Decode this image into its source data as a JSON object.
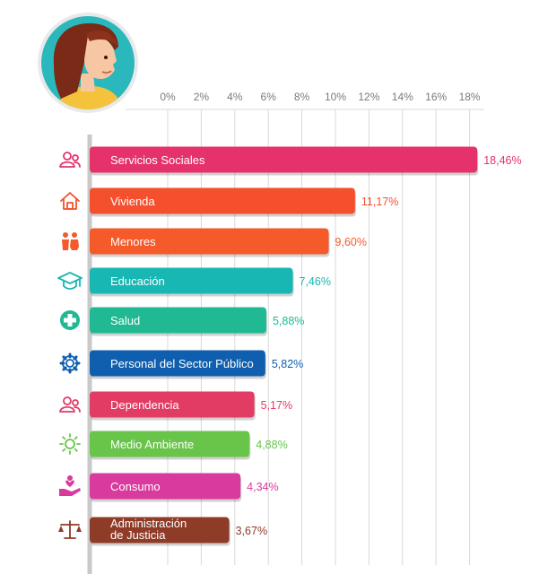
{
  "chart_data": {
    "type": "bar",
    "orientation": "horizontal",
    "x_ticks": [
      "0%",
      "2%",
      "4%",
      "6%",
      "8%",
      "10%",
      "12%",
      "14%",
      "16%",
      "18%"
    ],
    "xlim": [
      0,
      18
    ],
    "grid": true,
    "categories": [
      {
        "label": "Servicios Sociales",
        "value": 18.46,
        "value_label": "18,46%",
        "color": "#e5326b",
        "icon": "people-icon"
      },
      {
        "label": "Vivienda",
        "value": 11.17,
        "value_label": "11,17%",
        "color": "#f4502d",
        "icon": "house-icon"
      },
      {
        "label": "Menores",
        "value": 9.6,
        "value_label": "9,60%",
        "color": "#f45a2a",
        "icon": "children-icon"
      },
      {
        "label": "Educación",
        "value": 7.46,
        "value_label": "7,46%",
        "color": "#19b7b3",
        "icon": "graduation-cap-icon"
      },
      {
        "label": "Salud",
        "value": 5.88,
        "value_label": "5,88%",
        "color": "#20b993",
        "icon": "health-cross-icon"
      },
      {
        "label": "Personal del Sector Público",
        "value": 5.82,
        "value_label": "5,82%",
        "color": "#0f5fae",
        "icon": "gear-icon"
      },
      {
        "label": "Dependencia",
        "value": 5.17,
        "value_label": "5,17%",
        "color": "#e23b64",
        "icon": "people-icon"
      },
      {
        "label": "Medio Ambiente",
        "value": 4.88,
        "value_label": "4,88%",
        "color": "#69c44a",
        "icon": "sun-icon"
      },
      {
        "label": "Consumo",
        "value": 4.34,
        "value_label": "4,34%",
        "color": "#d93a9e",
        "icon": "hand-heart-icon"
      },
      {
        "label": "Administración de Justicia",
        "label_lines": [
          "Administración",
          "de Justicia"
        ],
        "value": 3.67,
        "value_label": "3,67%",
        "color": "#8e3b28",
        "icon": "scales-icon"
      }
    ]
  },
  "avatar": {
    "icon": "woman-avatar-icon",
    "ring_color": "#2bb8bd"
  }
}
